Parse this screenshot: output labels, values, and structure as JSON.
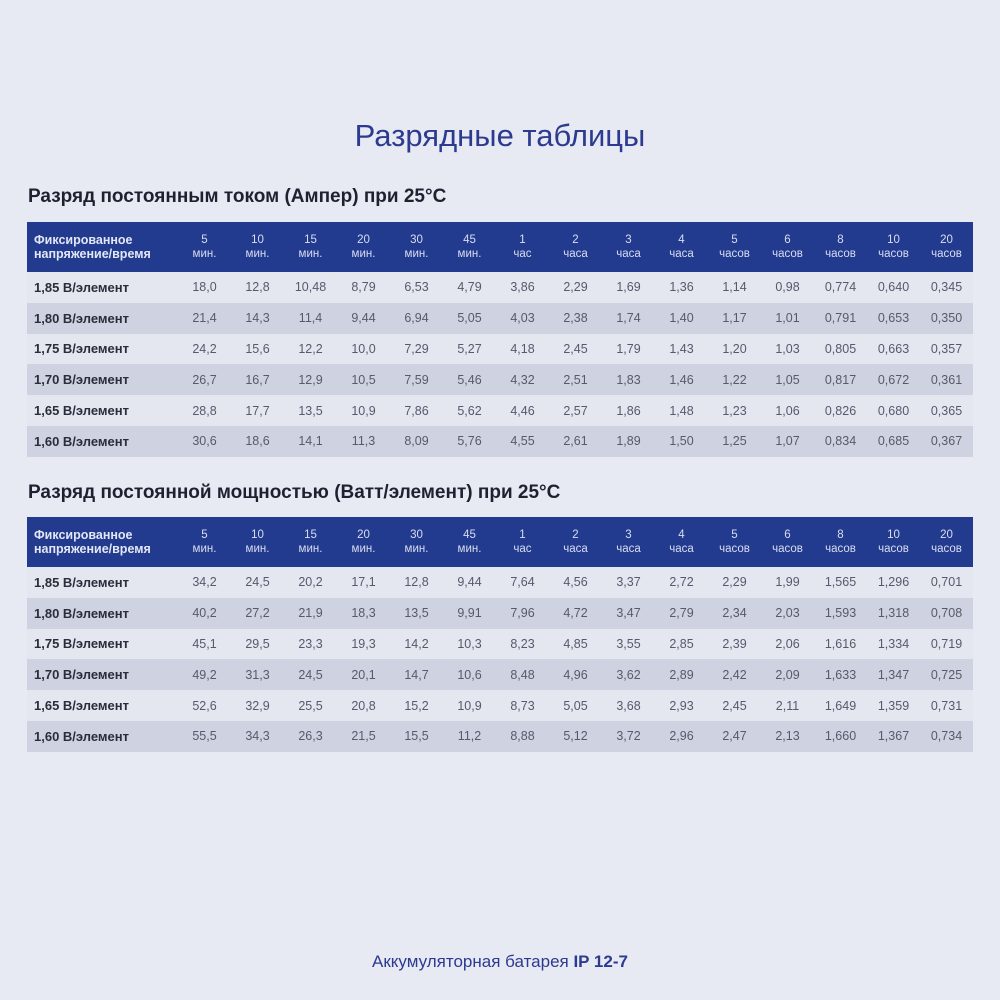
{
  "title": "Разрядные таблицы",
  "header_label": "Фиксированное напряжение/время",
  "columns": [
    [
      "5",
      "мин."
    ],
    [
      "10",
      "мин."
    ],
    [
      "15",
      "мин."
    ],
    [
      "20",
      "мин."
    ],
    [
      "30",
      "мин."
    ],
    [
      "45",
      "мин."
    ],
    [
      "1",
      "час"
    ],
    [
      "2",
      "часа"
    ],
    [
      "3",
      "часа"
    ],
    [
      "4",
      "часа"
    ],
    [
      "5",
      "часов"
    ],
    [
      "6",
      "часов"
    ],
    [
      "8",
      "часов"
    ],
    [
      "10",
      "часов"
    ],
    [
      "20",
      "часов"
    ]
  ],
  "tables": [
    {
      "heading": "Разряд постоянным током (Ампер) при 25°С",
      "rows": [
        {
          "label": "1,85 В/элемент",
          "values": [
            "18,0",
            "12,8",
            "10,48",
            "8,79",
            "6,53",
            "4,79",
            "3,86",
            "2,29",
            "1,69",
            "1,36",
            "1,14",
            "0,98",
            "0,774",
            "0,640",
            "0,345"
          ]
        },
        {
          "label": "1,80 В/элемент",
          "values": [
            "21,4",
            "14,3",
            "11,4",
            "9,44",
            "6,94",
            "5,05",
            "4,03",
            "2,38",
            "1,74",
            "1,40",
            "1,17",
            "1,01",
            "0,791",
            "0,653",
            "0,350"
          ]
        },
        {
          "label": "1,75 В/элемент",
          "values": [
            "24,2",
            "15,6",
            "12,2",
            "10,0",
            "7,29",
            "5,27",
            "4,18",
            "2,45",
            "1,79",
            "1,43",
            "1,20",
            "1,03",
            "0,805",
            "0,663",
            "0,357"
          ]
        },
        {
          "label": "1,70 В/элемент",
          "values": [
            "26,7",
            "16,7",
            "12,9",
            "10,5",
            "7,59",
            "5,46",
            "4,32",
            "2,51",
            "1,83",
            "1,46",
            "1,22",
            "1,05",
            "0,817",
            "0,672",
            "0,361"
          ]
        },
        {
          "label": "1,65 В/элемент",
          "values": [
            "28,8",
            "17,7",
            "13,5",
            "10,9",
            "7,86",
            "5,62",
            "4,46",
            "2,57",
            "1,86",
            "1,48",
            "1,23",
            "1,06",
            "0,826",
            "0,680",
            "0,365"
          ]
        },
        {
          "label": "1,60 В/элемент",
          "values": [
            "30,6",
            "18,6",
            "14,1",
            "11,3",
            "8,09",
            "5,76",
            "4,55",
            "2,61",
            "1,89",
            "1,50",
            "1,25",
            "1,07",
            "0,834",
            "0,685",
            "0,367"
          ]
        }
      ]
    },
    {
      "heading": "Разряд постоянной мощностью (Ватт/элемент) при 25°С",
      "rows": [
        {
          "label": "1,85 В/элемент",
          "values": [
            "34,2",
            "24,5",
            "20,2",
            "17,1",
            "12,8",
            "9,44",
            "7,64",
            "4,56",
            "3,37",
            "2,72",
            "2,29",
            "1,99",
            "1,565",
            "1,296",
            "0,701"
          ]
        },
        {
          "label": "1,80 В/элемент",
          "values": [
            "40,2",
            "27,2",
            "21,9",
            "18,3",
            "13,5",
            "9,91",
            "7,96",
            "4,72",
            "3,47",
            "2,79",
            "2,34",
            "2,03",
            "1,593",
            "1,318",
            "0,708"
          ]
        },
        {
          "label": "1,75 В/элемент",
          "values": [
            "45,1",
            "29,5",
            "23,3",
            "19,3",
            "14,2",
            "10,3",
            "8,23",
            "4,85",
            "3,55",
            "2,85",
            "2,39",
            "2,06",
            "1,616",
            "1,334",
            "0,719"
          ]
        },
        {
          "label": "1,70 В/элемент",
          "values": [
            "49,2",
            "31,3",
            "24,5",
            "20,1",
            "14,7",
            "10,6",
            "8,48",
            "4,96",
            "3,62",
            "2,89",
            "2,42",
            "2,09",
            "1,633",
            "1,347",
            "0,725"
          ]
        },
        {
          "label": "1,65 В/элемент",
          "values": [
            "52,6",
            "32,9",
            "25,5",
            "20,8",
            "15,2",
            "10,9",
            "8,73",
            "5,05",
            "3,68",
            "2,93",
            "2,45",
            "2,11",
            "1,649",
            "1,359",
            "0,731"
          ]
        },
        {
          "label": "1,60 В/элемент",
          "values": [
            "55,5",
            "34,3",
            "26,3",
            "21,5",
            "15,5",
            "11,2",
            "8,88",
            "5,12",
            "3,72",
            "2,96",
            "2,47",
            "2,13",
            "1,660",
            "1,367",
            "0,734"
          ]
        }
      ]
    }
  ],
  "footer": {
    "text": "Аккумуляторная батарея ",
    "model": "IP 12-7"
  },
  "colors": {
    "header_bg": "#233b8f",
    "title": "#2c3a8f",
    "row_odd": "#e4e6f0",
    "row_even": "#cfd2e0"
  }
}
